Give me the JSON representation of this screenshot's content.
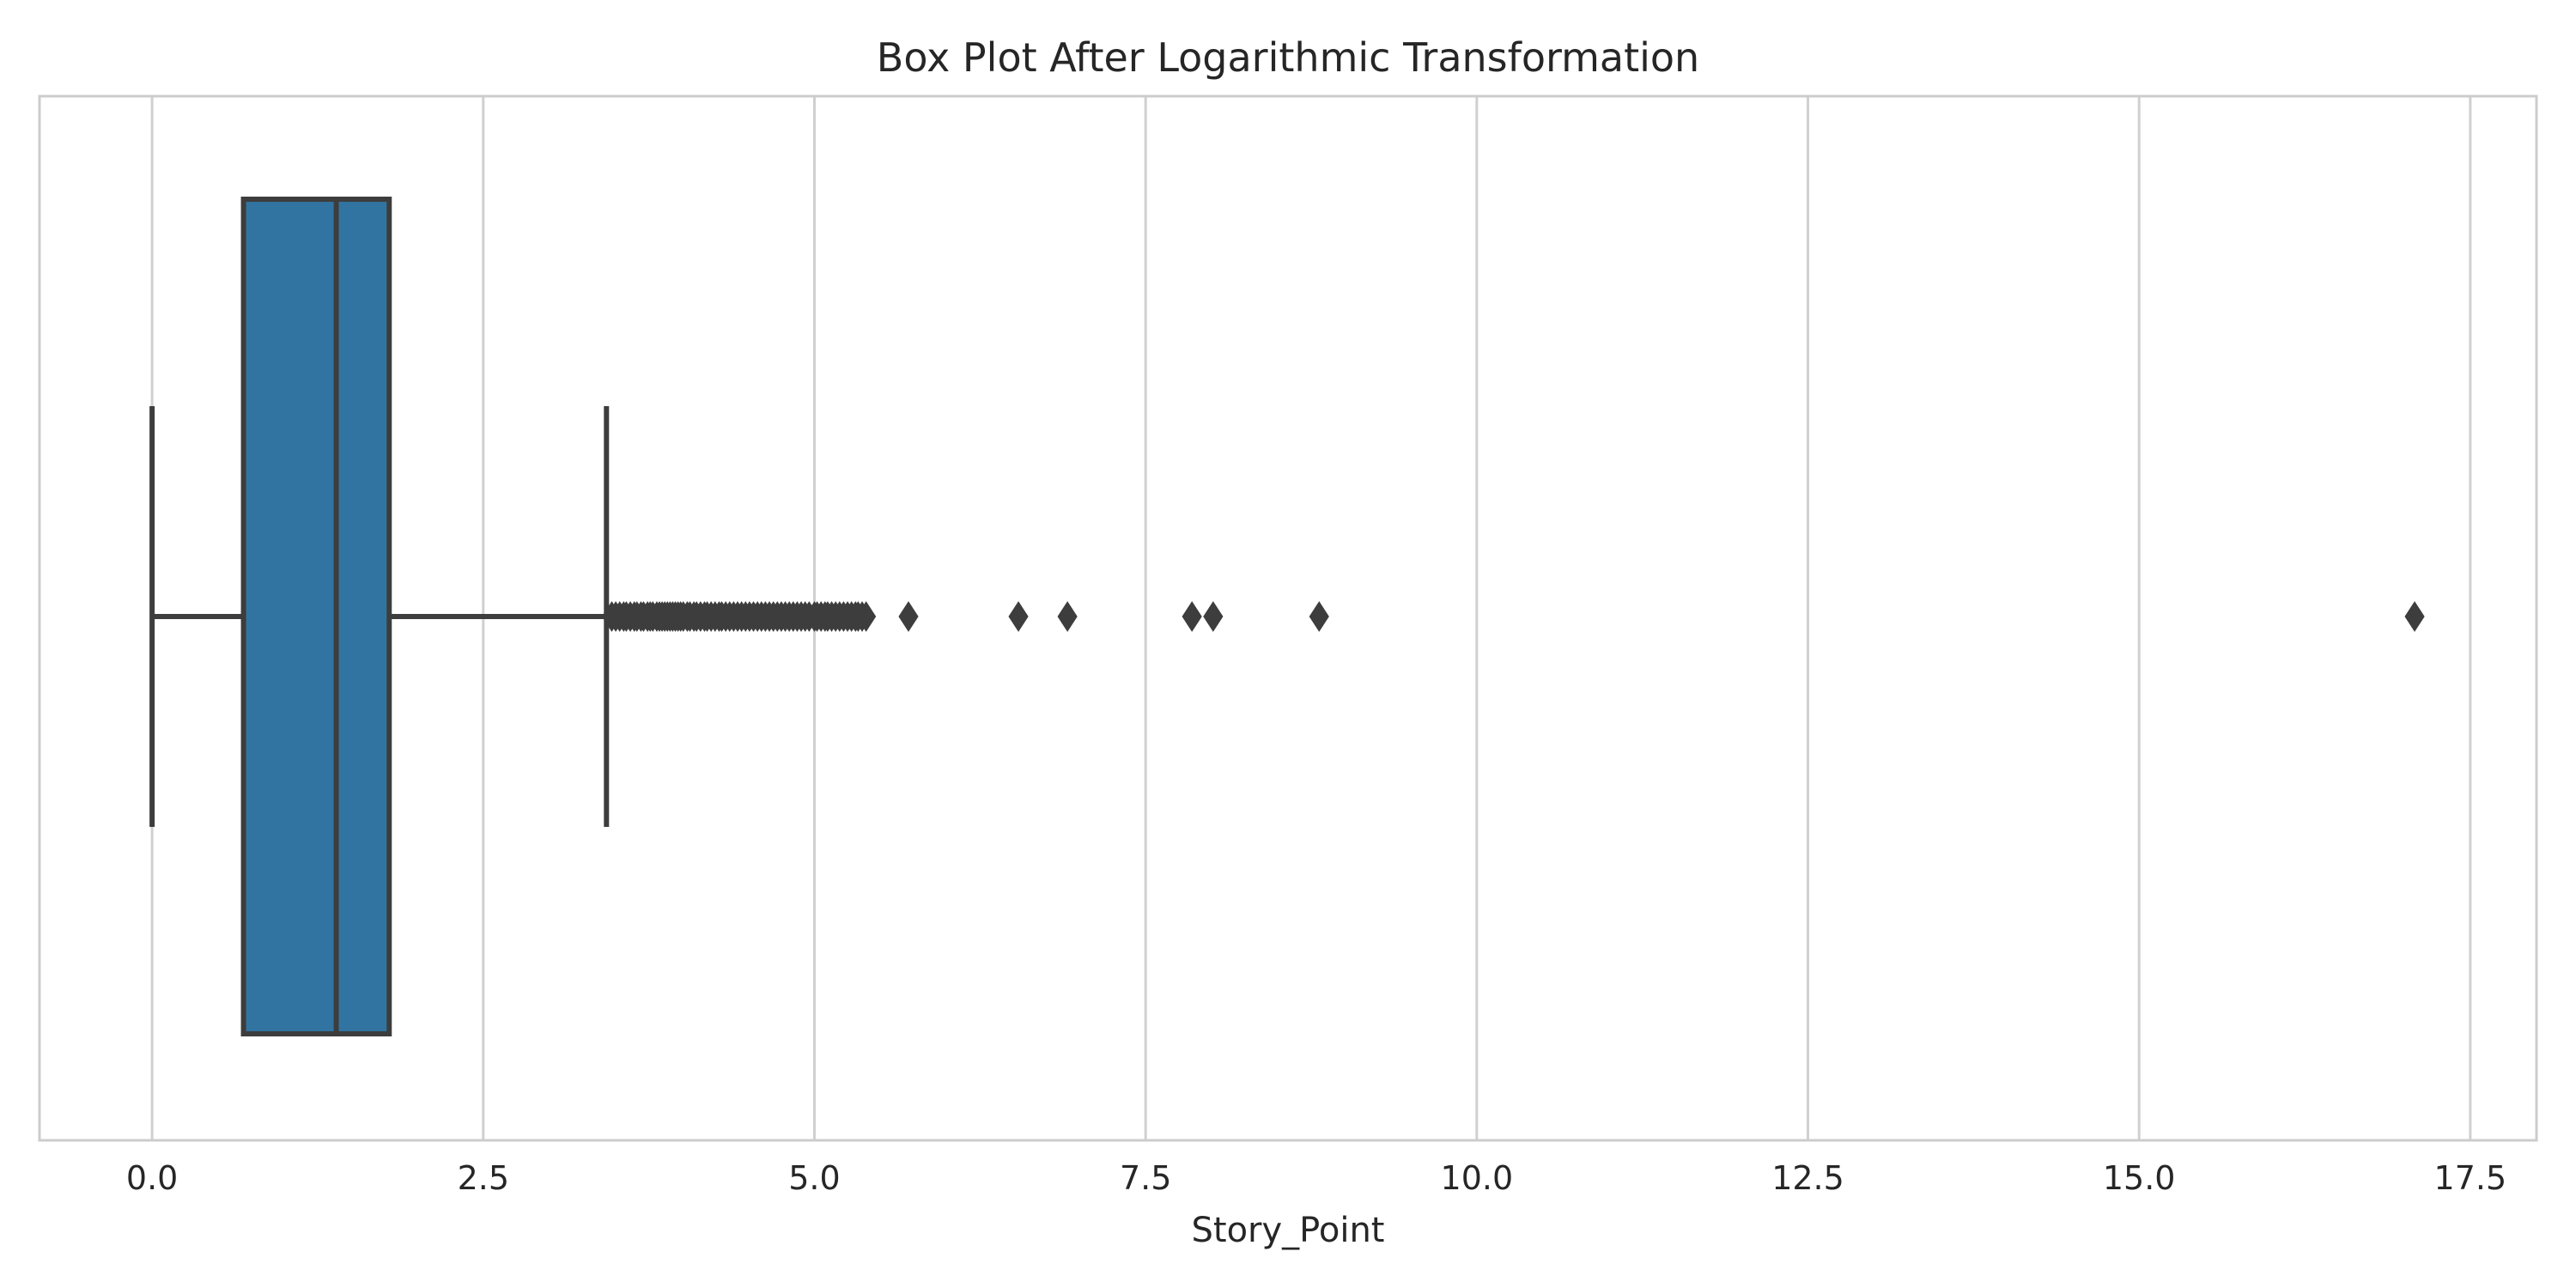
{
  "chart_data": {
    "type": "boxplot",
    "title": "Box Plot After Logarithmic Transformation",
    "xlabel": "Story_Point",
    "ylabel": "",
    "orientation": "horizontal",
    "xlim": [
      -0.85,
      18.0
    ],
    "xticks": [
      0.0,
      2.5,
      5.0,
      7.5,
      10.0,
      12.5,
      15.0,
      17.5
    ],
    "xtick_labels": [
      "0.0",
      "2.5",
      "5.0",
      "7.5",
      "10.0",
      "12.5",
      "15.0",
      "17.5"
    ],
    "grid": "vertical",
    "box": {
      "whisker_low": 0.0,
      "q1": 0.69,
      "median": 1.39,
      "q3": 1.79,
      "whisker_high": 3.43,
      "color": "#3274a1",
      "edge_color": "#3d3d3d"
    },
    "outliers": [
      3.47,
      3.5,
      3.53,
      3.56,
      3.58,
      3.61,
      3.64,
      3.66,
      3.69,
      3.71,
      3.74,
      3.76,
      3.78,
      3.81,
      3.83,
      3.85,
      3.87,
      3.89,
      3.91,
      3.93,
      3.95,
      3.97,
      3.99,
      4.01,
      4.04,
      4.06,
      4.09,
      4.11,
      4.14,
      4.17,
      4.19,
      4.22,
      4.25,
      4.28,
      4.3,
      4.33,
      4.36,
      4.39,
      4.42,
      4.45,
      4.48,
      4.51,
      4.54,
      4.57,
      4.6,
      4.63,
      4.66,
      4.69,
      4.72,
      4.75,
      4.78,
      4.81,
      4.84,
      4.87,
      4.9,
      4.93,
      4.96,
      5.0,
      5.02,
      5.05,
      5.08,
      5.1,
      5.13,
      5.16,
      5.19,
      5.22,
      5.25,
      5.28,
      5.31,
      5.33,
      5.36,
      5.39,
      5.71,
      6.54,
      6.91,
      7.85,
      8.01,
      8.81,
      17.08
    ]
  }
}
